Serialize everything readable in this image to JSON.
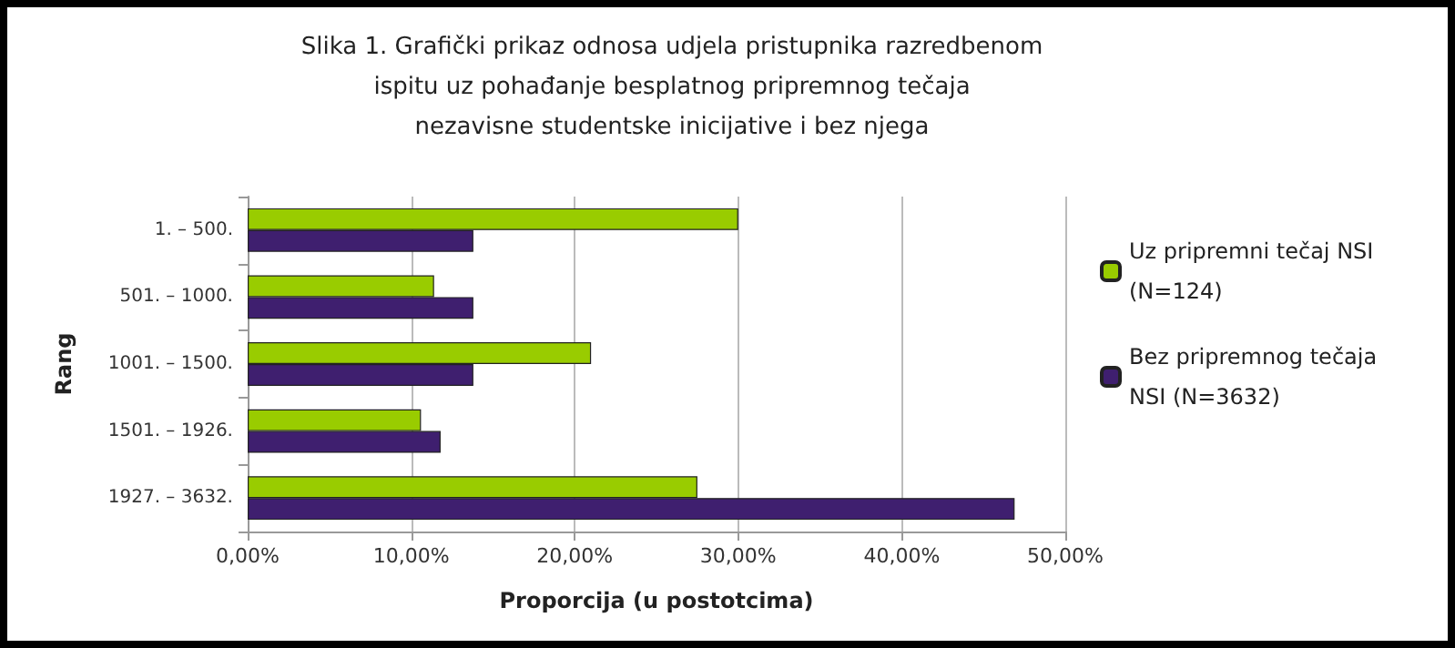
{
  "chart_data": {
    "type": "bar",
    "orientation": "horizontal",
    "title": "Slika 1. Grafički prikaz odnosa udjela pristupnika razredbenom\nispitu uz pohađanje besplatnog pripremnog tečaja\nnezavisne studentske inicijative i bez njega",
    "xlabel": "Proporcija (u postotcima)",
    "ylabel": "Rang",
    "categories": [
      "1. – 500.",
      "501. – 1000.",
      "1001. – 1500.",
      "1501. – 1926.",
      "1927. – 3632."
    ],
    "series": [
      {
        "name": "Uz pripremni tečaj NSI (N=124)",
        "color": "#99cc00",
        "values": [
          30.0,
          11.4,
          21.0,
          10.6,
          27.5
        ]
      },
      {
        "name": "Bez pripremnog tečaja NSI (N=3632)",
        "color": "#3f1f6f",
        "values": [
          13.8,
          13.8,
          13.8,
          11.8,
          46.9
        ]
      }
    ],
    "xlim": [
      0,
      50
    ],
    "xticks": [
      {
        "value": 0,
        "label": "0,00%"
      },
      {
        "value": 10,
        "label": "10,00%"
      },
      {
        "value": 20,
        "label": "20,00%"
      },
      {
        "value": 30,
        "label": "30,00%"
      },
      {
        "value": 40,
        "label": "40,00%"
      },
      {
        "value": 50,
        "label": "50,00%"
      }
    ],
    "grid": "x",
    "legend": "right"
  }
}
